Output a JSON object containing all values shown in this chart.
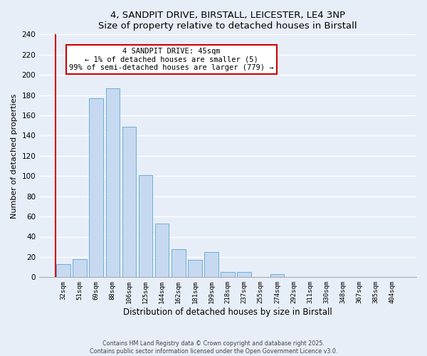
{
  "title1": "4, SANDPIT DRIVE, BIRSTALL, LEICESTER, LE4 3NP",
  "title2": "Size of property relative to detached houses in Birstall",
  "xlabel": "Distribution of detached houses by size in Birstall",
  "ylabel": "Number of detached properties",
  "bar_labels": [
    "32sqm",
    "51sqm",
    "69sqm",
    "88sqm",
    "106sqm",
    "125sqm",
    "144sqm",
    "162sqm",
    "181sqm",
    "199sqm",
    "218sqm",
    "237sqm",
    "255sqm",
    "274sqm",
    "292sqm",
    "311sqm",
    "330sqm",
    "348sqm",
    "367sqm",
    "385sqm",
    "404sqm"
  ],
  "bar_values": [
    13,
    18,
    177,
    187,
    149,
    101,
    53,
    28,
    17,
    25,
    5,
    5,
    0,
    3,
    0,
    0,
    0,
    0,
    0,
    0,
    0
  ],
  "bar_color": "#c6d9f0",
  "bar_edge_color": "#6baed6",
  "vline_color": "#cc0000",
  "ylim": [
    0,
    240
  ],
  "yticks": [
    0,
    20,
    40,
    60,
    80,
    100,
    120,
    140,
    160,
    180,
    200,
    220,
    240
  ],
  "annotation_title": "4 SANDPIT DRIVE: 45sqm",
  "annotation_line1": "← 1% of detached houses are smaller (5)",
  "annotation_line2": "99% of semi-detached houses are larger (779) →",
  "annotation_box_color": "#ffffff",
  "annotation_box_edge": "#cc0000",
  "footer1": "Contains HM Land Registry data © Crown copyright and database right 2025.",
  "footer2": "Contains public sector information licensed under the Open Government Licence v3.0.",
  "bg_color": "#e8eef8",
  "grid_color": "#ffffff"
}
